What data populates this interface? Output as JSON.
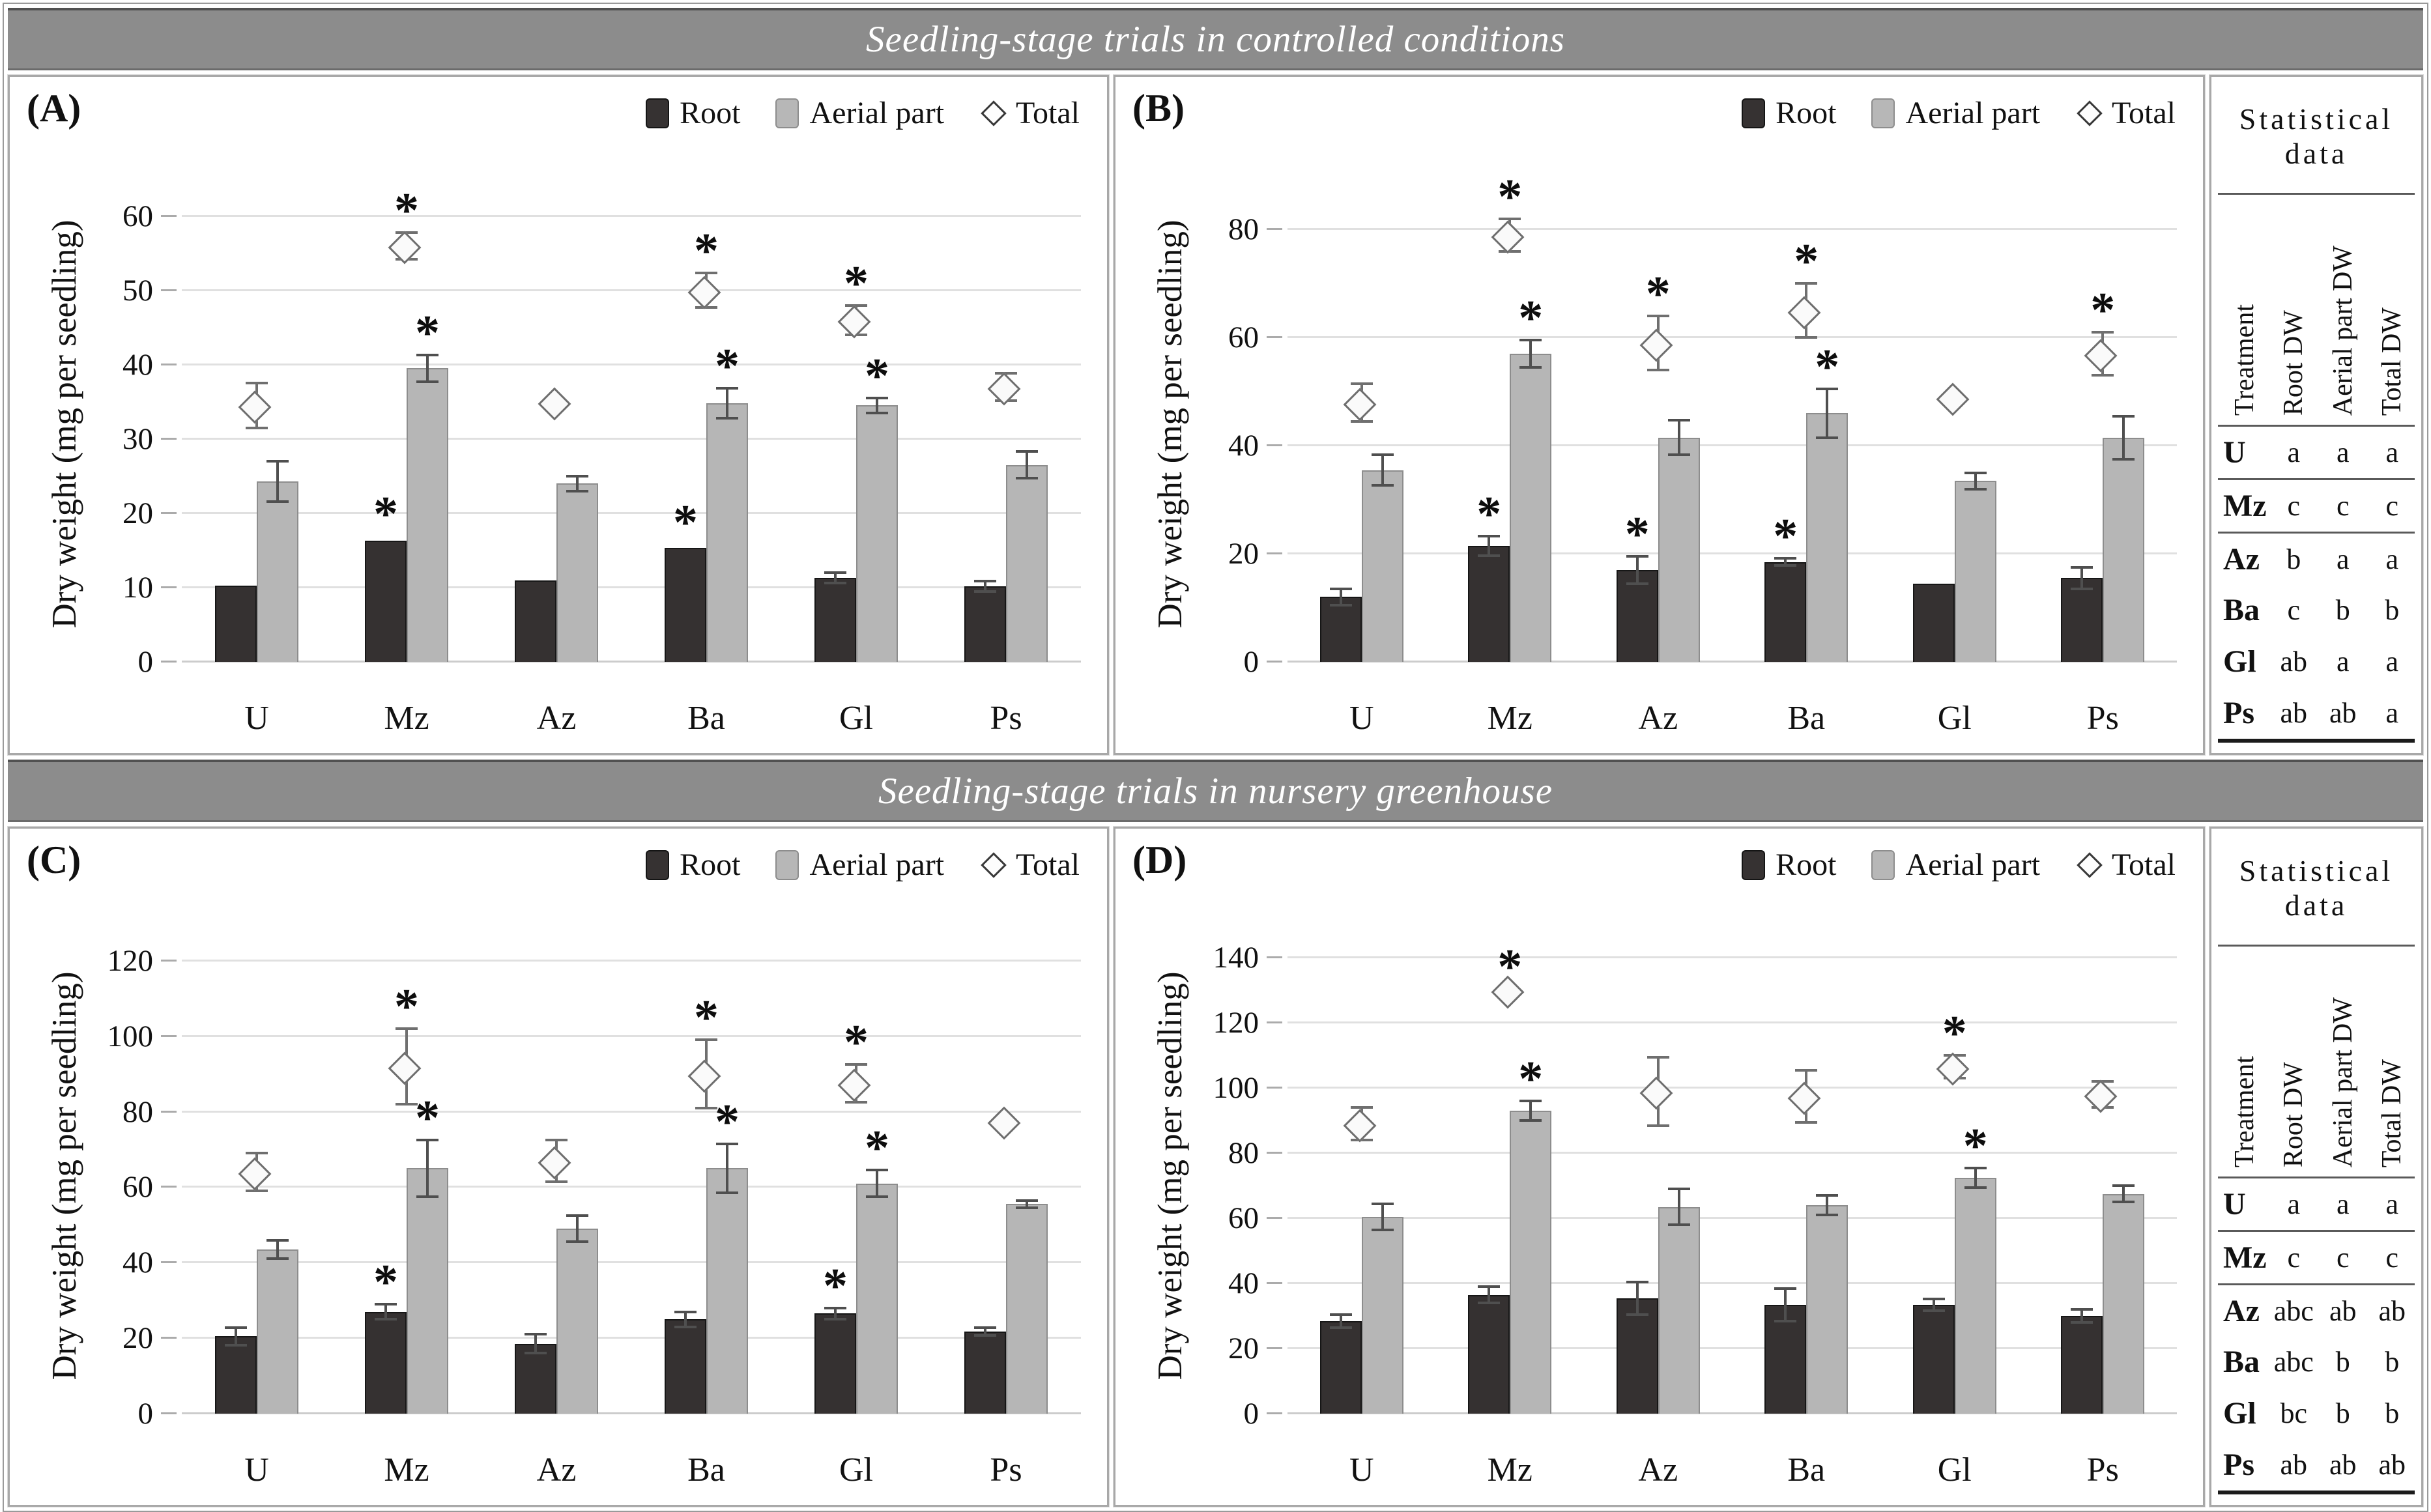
{
  "headers": {
    "row1": "Seedling-stage trials in controlled conditions",
    "row2": "Seedling-stage trials in nursery greenhouse"
  },
  "legend": {
    "root": "Root",
    "aerial": "Aerial part",
    "total": "Total"
  },
  "ylabel": "Dry weight (mg per seedling)",
  "stats": {
    "title": "Statistical data",
    "columns": [
      "Treatment",
      "Root DW",
      "Aerial part DW",
      "Total DW"
    ],
    "table1": {
      "rows": [
        [
          "U",
          "a",
          "a",
          "a"
        ],
        [
          "Mz",
          "c",
          "c",
          "c"
        ],
        [
          "Az",
          "b",
          "a",
          "a"
        ],
        [
          "Ba",
          "c",
          "b",
          "b"
        ],
        [
          "Gl",
          "ab",
          "a",
          "a"
        ],
        [
          "Ps",
          "ab",
          "ab",
          "a"
        ]
      ]
    },
    "table2": {
      "rows": [
        [
          "U",
          "a",
          "a",
          "a"
        ],
        [
          "Mz",
          "c",
          "c",
          "c"
        ],
        [
          "Az",
          "abc",
          "ab",
          "ab"
        ],
        [
          "Ba",
          "abc",
          "b",
          "b"
        ],
        [
          "Gl",
          "bc",
          "b",
          "b"
        ],
        [
          "Ps",
          "ab",
          "ab",
          "ab"
        ]
      ]
    }
  },
  "chart_data": [
    {
      "type": "bar",
      "panel": "(A)",
      "section": "Seedling-stage trials in controlled conditions",
      "categories": [
        "U",
        "Mz",
        "Az",
        "Ba",
        "Gl",
        "Ps"
      ],
      "ylim": [
        0,
        64
      ],
      "yticks": [
        0,
        10,
        20,
        30,
        40,
        50,
        60
      ],
      "xlabel": "",
      "ylabel": "Dry weight (mg per seedling)",
      "legend_position": "top-right",
      "series": [
        {
          "name": "Root",
          "style": "bar-dark",
          "values": [
            10.3,
            16.3,
            11.0,
            15.3,
            11.3,
            10.2
          ],
          "errors": [
            0.5,
            0.6,
            0.4,
            0.5,
            0.7,
            0.7
          ],
          "sig": [
            0,
            1,
            0,
            1,
            0,
            0
          ]
        },
        {
          "name": "Aerial part",
          "style": "bar-light",
          "values": [
            24.3,
            39.5,
            24.0,
            34.8,
            34.5,
            26.5
          ],
          "errors": [
            2.7,
            1.8,
            1.0,
            2.0,
            1.0,
            1.8
          ],
          "sig": [
            0,
            1,
            0,
            1,
            1,
            0
          ]
        },
        {
          "name": "Total",
          "style": "diamond",
          "values": [
            34.5,
            56.0,
            35.0,
            50.0,
            46.0,
            37.0
          ],
          "errors": [
            3.0,
            1.8,
            0,
            2.3,
            2.0,
            1.8
          ],
          "sig": [
            0,
            1,
            0,
            1,
            1,
            0
          ]
        }
      ]
    },
    {
      "type": "bar",
      "panel": "(B)",
      "section": "Seedling-stage trials in controlled conditions",
      "categories": [
        "U",
        "Mz",
        "Az",
        "Ba",
        "Gl",
        "Ps"
      ],
      "ylim": [
        0,
        88
      ],
      "yticks": [
        0,
        20,
        40,
        60,
        80
      ],
      "xlabel": "",
      "ylabel": "Dry weight (mg per seedling)",
      "legend_position": "top-right",
      "series": [
        {
          "name": "Root",
          "style": "bar-dark",
          "values": [
            12.0,
            21.5,
            17.0,
            18.5,
            14.5,
            15.5
          ],
          "errors": [
            1.5,
            1.8,
            2.5,
            0.7,
            0.3,
            2.0
          ],
          "sig": [
            0,
            1,
            1,
            1,
            0,
            0
          ]
        },
        {
          "name": "Aerial part",
          "style": "bar-light",
          "values": [
            35.5,
            57.0,
            41.5,
            46.0,
            33.5,
            41.5
          ],
          "errors": [
            2.8,
            2.5,
            3.2,
            4.5,
            1.5,
            4.0
          ],
          "sig": [
            0,
            1,
            0,
            1,
            0,
            0
          ]
        },
        {
          "name": "Total",
          "style": "diamond",
          "values": [
            48.0,
            79.0,
            59.0,
            65.0,
            49.0,
            57.0
          ],
          "errors": [
            3.5,
            3.0,
            5.0,
            5.0,
            0.5,
            4.0
          ],
          "sig": [
            0,
            1,
            1,
            1,
            0,
            1
          ]
        }
      ]
    },
    {
      "type": "bar",
      "panel": "(C)",
      "section": "Seedling-stage trials in nursery greenhouse",
      "categories": [
        "U",
        "Mz",
        "Az",
        "Ba",
        "Gl",
        "Ps"
      ],
      "ylim": [
        0,
        126
      ],
      "yticks": [
        0,
        20,
        40,
        60,
        80,
        100,
        120
      ],
      "xlabel": "",
      "ylabel": "Dry weight (mg per seedling)",
      "legend_position": "top-right",
      "series": [
        {
          "name": "Root",
          "style": "bar-dark",
          "values": [
            20.5,
            27.0,
            18.5,
            25.0,
            26.5,
            21.8
          ],
          "errors": [
            2.3,
            2.0,
            2.5,
            2.0,
            1.5,
            1.0
          ],
          "sig": [
            0,
            1,
            0,
            0,
            1,
            0
          ]
        },
        {
          "name": "Aerial part",
          "style": "bar-light",
          "values": [
            43.5,
            65.0,
            49.0,
            65.0,
            61.0,
            55.5
          ],
          "errors": [
            2.5,
            7.5,
            3.5,
            6.5,
            3.5,
            1.0
          ],
          "sig": [
            0,
            1,
            0,
            1,
            1,
            0
          ]
        },
        {
          "name": "Total",
          "style": "diamond",
          "values": [
            64.0,
            92.0,
            67.0,
            90.0,
            87.5,
            77.5
          ],
          "errors": [
            5.0,
            10.0,
            5.5,
            9.0,
            5.0,
            0.5
          ],
          "sig": [
            0,
            1,
            0,
            1,
            1,
            0
          ]
        }
      ]
    },
    {
      "type": "bar",
      "panel": "(D)",
      "section": "Seedling-stage trials in nursery greenhouse",
      "categories": [
        "U",
        "Mz",
        "Az",
        "Ba",
        "Gl",
        "Ps"
      ],
      "ylim": [
        0,
        146
      ],
      "yticks": [
        0,
        20,
        40,
        60,
        80,
        100,
        120,
        140
      ],
      "xlabel": "",
      "ylabel": "Dry weight (mg per seedling)",
      "legend_position": "top-right",
      "series": [
        {
          "name": "Root",
          "style": "bar-dark",
          "values": [
            28.5,
            36.5,
            35.5,
            33.5,
            33.5,
            30.0
          ],
          "errors": [
            2.0,
            2.5,
            5.0,
            5.0,
            1.8,
            2.0
          ],
          "sig": [
            0,
            0,
            0,
            0,
            0,
            0
          ]
        },
        {
          "name": "Aerial part",
          "style": "bar-light",
          "values": [
            60.5,
            93.0,
            63.5,
            64.0,
            72.5,
            67.5
          ],
          "errors": [
            4.0,
            3.0,
            5.5,
            3.0,
            3.0,
            2.5
          ],
          "sig": [
            0,
            1,
            0,
            0,
            1,
            0
          ]
        },
        {
          "name": "Total",
          "style": "diamond",
          "values": [
            89.0,
            130.0,
            99.0,
            97.5,
            106.5,
            98.0
          ],
          "errors": [
            5.0,
            0.5,
            10.5,
            8.0,
            3.5,
            4.0
          ],
          "sig": [
            0,
            1,
            0,
            0,
            1,
            0
          ]
        }
      ]
    }
  ]
}
